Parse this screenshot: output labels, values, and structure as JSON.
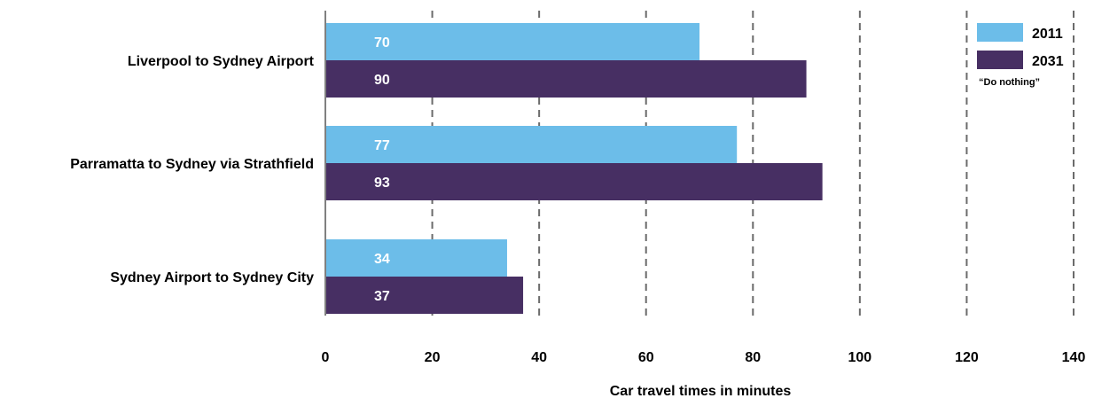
{
  "chart_data": {
    "type": "bar",
    "orientation": "horizontal",
    "categories": [
      "Liverpool to Sydney Airport",
      "Parramatta to Sydney via Strathfield",
      "Sydney Airport to Sydney City"
    ],
    "series": [
      {
        "name": "2011",
        "values": [
          70,
          77,
          34
        ],
        "color": "#6cbde9"
      },
      {
        "name": "2031",
        "values": [
          90,
          93,
          37
        ],
        "color": "#472f63"
      }
    ],
    "xlabel": "Car travel times in minutes",
    "xlim": [
      0,
      140
    ],
    "xticks": [
      0,
      20,
      40,
      60,
      80,
      100,
      120,
      140
    ],
    "grid": "vertical dashed",
    "legend": {
      "position": "top-right",
      "note": "“Do nothing”"
    }
  }
}
